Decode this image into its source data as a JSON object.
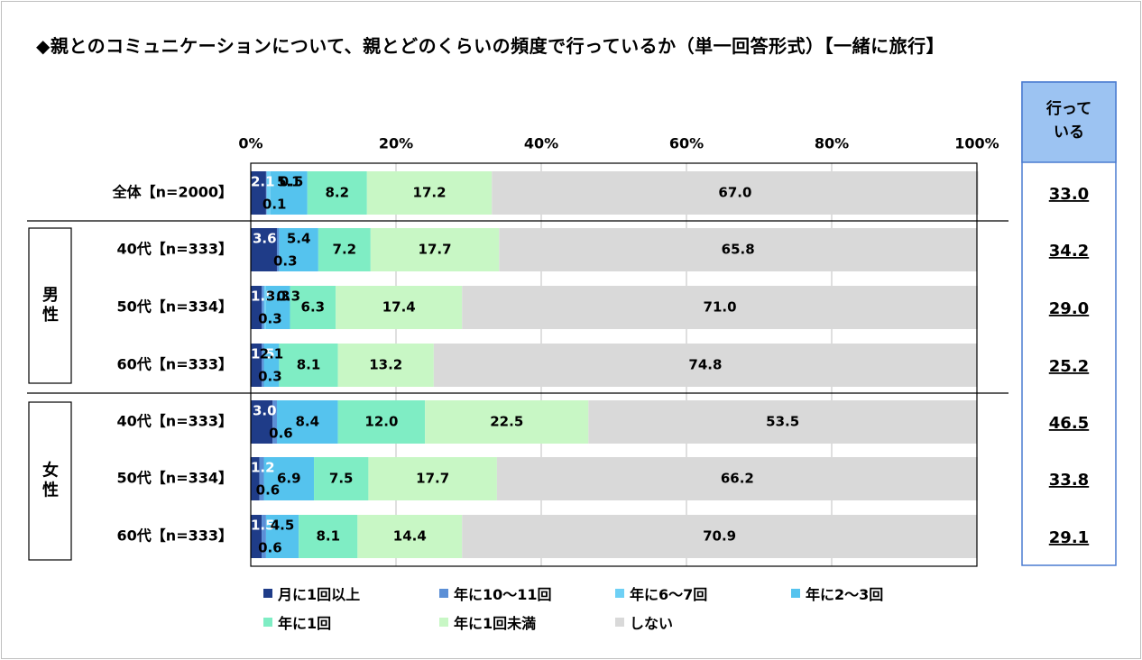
{
  "title": "◆親とのコミュニケーションについて、親とどのくらいの頻度で行っているか（単一回答形式）【一緒に旅行】",
  "chart_data": {
    "type": "bar",
    "stacked": true,
    "orientation": "horizontal",
    "x_ticks": [
      "0%",
      "20%",
      "40%",
      "60%",
      "80%",
      "100%"
    ],
    "xlim": [
      0,
      100
    ],
    "categories": [
      "全体【n=2000】",
      "40代【n=333】",
      "50代【n=334】",
      "60代【n=333】",
      "40代【n=333】",
      "50代【n=334】",
      "60代【n=333】"
    ],
    "groups": [
      {
        "label": "男性",
        "rows": [
          1,
          2,
          3
        ]
      },
      {
        "label": "女性",
        "rows": [
          4,
          5,
          6
        ]
      }
    ],
    "series": [
      {
        "name": "月に1回以上",
        "color": "#1f3c88",
        "values": [
          2.1,
          3.6,
          1.5,
          1.5,
          3.0,
          1.2,
          1.5
        ],
        "labels": [
          "2.1",
          "3.6",
          "1.5",
          "1.5",
          "3.0",
          "1.2",
          "1.5"
        ]
      },
      {
        "name": "年に10～11回",
        "color": "#5b8fd6",
        "values": [
          0.1,
          0.3,
          0.3,
          0.3,
          0.6,
          0.6,
          0.6
        ],
        "labels": [
          "0.1",
          "0.3",
          "0.3",
          "0.3",
          "0.6",
          "0.6",
          "0.6"
        ]
      },
      {
        "name": "年に6～7回",
        "color": "#6ed0f5",
        "values": [
          0.5,
          0.0,
          0.3,
          0.0,
          0.0,
          0.0,
          0.0
        ],
        "labels": [
          "0.5",
          "",
          "0.3",
          "",
          "",
          "",
          ""
        ]
      },
      {
        "name": "年に2～3回",
        "color": "#55c3ee",
        "values": [
          5.1,
          5.4,
          3.3,
          2.1,
          8.4,
          6.9,
          4.5
        ],
        "labels": [
          "5.1",
          "5.4",
          "3.3",
          "2.1",
          "8.4",
          "6.9",
          "4.5"
        ]
      },
      {
        "name": "年に1回",
        "color": "#7fedc4",
        "values": [
          8.2,
          7.2,
          6.3,
          8.1,
          12.0,
          7.5,
          8.1
        ],
        "labels": [
          "8.2",
          "7.2",
          "6.3",
          "8.1",
          "12.0",
          "7.5",
          "8.1"
        ]
      },
      {
        "name": "年に1回未満",
        "color": "#c8f7c5",
        "values": [
          17.2,
          17.7,
          17.4,
          13.2,
          22.5,
          17.7,
          14.4
        ],
        "labels": [
          "17.2",
          "17.7",
          "17.4",
          "13.2",
          "22.5",
          "17.7",
          "14.4"
        ]
      },
      {
        "name": "しない",
        "color": "#d9d9d9",
        "values": [
          67.0,
          65.8,
          71.0,
          74.8,
          53.5,
          66.2,
          70.9
        ],
        "labels": [
          "67.0",
          "65.8",
          "71.0",
          "74.8",
          "53.5",
          "66.2",
          "70.9"
        ]
      }
    ],
    "side_column": {
      "header": [
        "行って",
        "いる"
      ],
      "values": [
        "33.0",
        "34.2",
        "29.0",
        "25.2",
        "46.5",
        "33.8",
        "29.1"
      ]
    },
    "grid": true,
    "legend_position": "bottom"
  }
}
